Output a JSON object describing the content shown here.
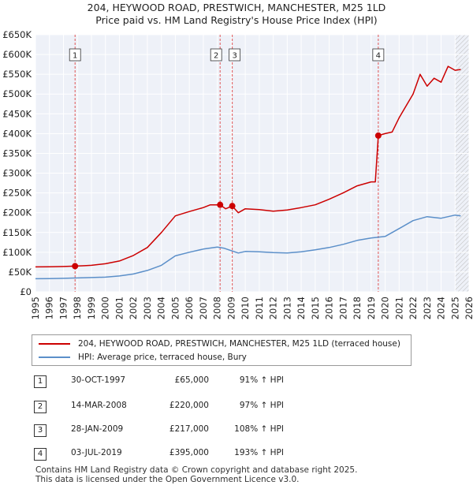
{
  "title": "204, HEYWOOD ROAD, PRESTWICH, MANCHESTER, M25 1LD",
  "subtitle": "Price paid vs. HM Land Registry's House Price Index (HPI)",
  "chart_data": {
    "type": "line",
    "title": "204, HEYWOOD ROAD, PRESTWICH, MANCHESTER, M25 1LD",
    "subtitle": "Price paid vs. HM Land Registry's House Price Index (HPI)",
    "xlim": [
      1995,
      2026
    ],
    "ylim": [
      0,
      650000
    ],
    "y_ticks": [
      0,
      50000,
      100000,
      150000,
      200000,
      250000,
      300000,
      350000,
      400000,
      450000,
      500000,
      550000,
      600000,
      650000
    ],
    "y_tick_labels": [
      "£0",
      "£50K",
      "£100K",
      "£150K",
      "£200K",
      "£250K",
      "£300K",
      "£350K",
      "£400K",
      "£450K",
      "£500K",
      "£550K",
      "£600K",
      "£650K"
    ],
    "x_ticks": [
      1995,
      1996,
      1997,
      1998,
      1999,
      2000,
      2001,
      2002,
      2003,
      2004,
      2005,
      2006,
      2007,
      2008,
      2009,
      2010,
      2011,
      2012,
      2013,
      2014,
      2015,
      2016,
      2017,
      2018,
      2019,
      2020,
      2021,
      2022,
      2023,
      2024,
      2025,
      2026
    ],
    "x_tick_labels": [
      "1995",
      "1996",
      "1997",
      "1998",
      "1999",
      "2000",
      "2001",
      "2002",
      "2003",
      "2004",
      "2005",
      "2006",
      "2007",
      "2008",
      "2009",
      "2010",
      "2011",
      "2012",
      "2013",
      "2014",
      "2015",
      "2016",
      "2017",
      "2018",
      "2019",
      "2020",
      "2021",
      "2022",
      "2023",
      "2024",
      "2025",
      "2026"
    ],
    "grid": true,
    "series": [
      {
        "name": "204, HEYWOOD ROAD, PRESTWICH, MANCHESTER, M25 1LD (terraced house)",
        "color": "#cc0000",
        "x": [
          1995.0,
          1996.0,
          1997.0,
          1997.83,
          1998.5,
          1999.0,
          2000.0,
          2001.0,
          2002.0,
          2003.0,
          2004.0,
          2005.0,
          2006.0,
          2007.0,
          2007.5,
          2008.2,
          2008.6,
          2009.07,
          2009.5,
          2010.0,
          2011.0,
          2012.0,
          2013.0,
          2014.0,
          2015.0,
          2016.0,
          2017.0,
          2018.0,
          2019.0,
          2019.3,
          2019.51,
          2020.0,
          2020.5,
          2021.0,
          2022.0,
          2022.5,
          2023.0,
          2023.5,
          2024.0,
          2024.5,
          2025.0,
          2025.4
        ],
        "y": [
          63000,
          63500,
          64000,
          65000,
          66000,
          67000,
          71000,
          78000,
          92000,
          112000,
          150000,
          192000,
          203000,
          213000,
          220000,
          220000,
          210000,
          217000,
          200000,
          210000,
          208000,
          204000,
          207000,
          213000,
          220000,
          234000,
          250000,
          268000,
          278000,
          278000,
          395000,
          400000,
          404000,
          440000,
          500000,
          550000,
          520000,
          540000,
          530000,
          570000,
          560000,
          562000
        ]
      },
      {
        "name": "HPI: Average price, terraced house, Bury",
        "color": "#5b8fc9",
        "x": [
          1995.0,
          1996.0,
          1997.0,
          1998.0,
          1999.0,
          2000.0,
          2001.0,
          2002.0,
          2003.0,
          2004.0,
          2005.0,
          2006.0,
          2007.0,
          2008.0,
          2008.5,
          2009.0,
          2009.5,
          2010.0,
          2011.0,
          2012.0,
          2013.0,
          2014.0,
          2015.0,
          2016.0,
          2017.0,
          2018.0,
          2019.0,
          2020.0,
          2021.0,
          2022.0,
          2023.0,
          2024.0,
          2025.0,
          2025.4
        ],
        "y": [
          33000,
          33500,
          34000,
          35000,
          36000,
          37000,
          40000,
          45000,
          54000,
          67000,
          91000,
          100000,
          108000,
          113000,
          110000,
          104000,
          98000,
          102000,
          101000,
          99000,
          98000,
          101000,
          106000,
          112000,
          120000,
          130000,
          136000,
          140000,
          160000,
          180000,
          190000,
          186000,
          194000,
          192000
        ]
      }
    ],
    "sales": [
      {
        "label": "1",
        "x": 1997.83,
        "y": 65000
      },
      {
        "label": "2",
        "x": 2008.2,
        "y": 220000
      },
      {
        "label": "3",
        "x": 2009.07,
        "y": 217000
      },
      {
        "label": "4",
        "x": 2019.51,
        "y": 395000
      }
    ],
    "hatched_from": 2025.0
  },
  "legend": {
    "items": [
      {
        "label": "204, HEYWOOD ROAD, PRESTWICH, MANCHESTER, M25 1LD (terraced house)",
        "color": "#cc0000"
      },
      {
        "label": "HPI: Average price, terraced house, Bury",
        "color": "#5b8fc9"
      }
    ]
  },
  "sales_table": [
    {
      "num": "1",
      "date": "30-OCT-1997",
      "price": "£65,000",
      "hpi": "91% ↑ HPI"
    },
    {
      "num": "2",
      "date": "14-MAR-2008",
      "price": "£220,000",
      "hpi": "97% ↑ HPI"
    },
    {
      "num": "3",
      "date": "28-JAN-2009",
      "price": "£217,000",
      "hpi": "108% ↑ HPI"
    },
    {
      "num": "4",
      "date": "03-JUL-2019",
      "price": "£395,000",
      "hpi": "193% ↑ HPI"
    }
  ],
  "footer": {
    "line1": "Contains HM Land Registry data © Crown copyright and database right 2025.",
    "line2": "This data is licensed under the Open Government Licence v3.0."
  }
}
